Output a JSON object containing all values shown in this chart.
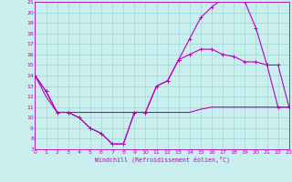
{
  "xlabel": "Windchill (Refroidissement éolien,°C)",
  "bg_color": "#c8eeee",
  "grid_color": "#a8d8d8",
  "line_color": "#bb00bb",
  "xmin": 0,
  "xmax": 23,
  "ymin": 7,
  "ymax": 21,
  "yticks": [
    7,
    8,
    9,
    10,
    11,
    12,
    13,
    14,
    15,
    16,
    17,
    18,
    19,
    20,
    21
  ],
  "xticks": [
    0,
    1,
    2,
    3,
    4,
    5,
    6,
    7,
    8,
    9,
    10,
    11,
    12,
    13,
    14,
    15,
    16,
    17,
    18,
    19,
    20,
    21,
    22,
    23
  ],
  "line1_x": [
    0,
    1,
    2,
    3,
    4,
    5,
    6,
    7,
    8,
    9,
    10,
    11,
    12,
    13,
    14,
    15,
    16,
    17,
    18,
    19,
    20,
    21,
    22,
    23
  ],
  "line1_y": [
    14,
    12.5,
    10.5,
    10.5,
    10,
    9,
    8.5,
    7.5,
    7.5,
    10.5,
    10.5,
    13,
    13.5,
    15.5,
    17.5,
    19.5,
    20.5,
    21.3,
    21.5,
    21,
    18.5,
    15,
    15,
    11
  ],
  "line2_x": [
    0,
    1,
    2,
    3,
    4,
    5,
    6,
    7,
    8,
    9,
    10,
    11,
    12,
    13,
    14,
    15,
    16,
    17,
    18,
    19,
    20,
    21,
    22,
    23
  ],
  "line2_y": [
    14,
    12.5,
    10.5,
    10.5,
    10,
    9,
    8.5,
    7.5,
    7.5,
    10.5,
    10.5,
    13,
    13.5,
    15.5,
    16,
    16.5,
    16.5,
    16,
    15.8,
    15.3,
    15.3,
    15,
    11,
    11
  ],
  "line3_x": [
    0,
    1,
    2,
    3,
    4,
    5,
    6,
    7,
    8,
    9,
    10,
    11,
    12,
    13,
    14,
    15,
    16,
    17,
    18,
    19,
    20,
    21,
    22,
    23
  ],
  "line3_y": [
    14,
    12,
    10.5,
    10.5,
    10.5,
    10.5,
    10.5,
    10.5,
    10.5,
    10.5,
    10.5,
    10.5,
    10.5,
    10.5,
    10.5,
    10.8,
    11,
    11,
    11,
    11,
    11,
    11,
    11,
    11
  ]
}
